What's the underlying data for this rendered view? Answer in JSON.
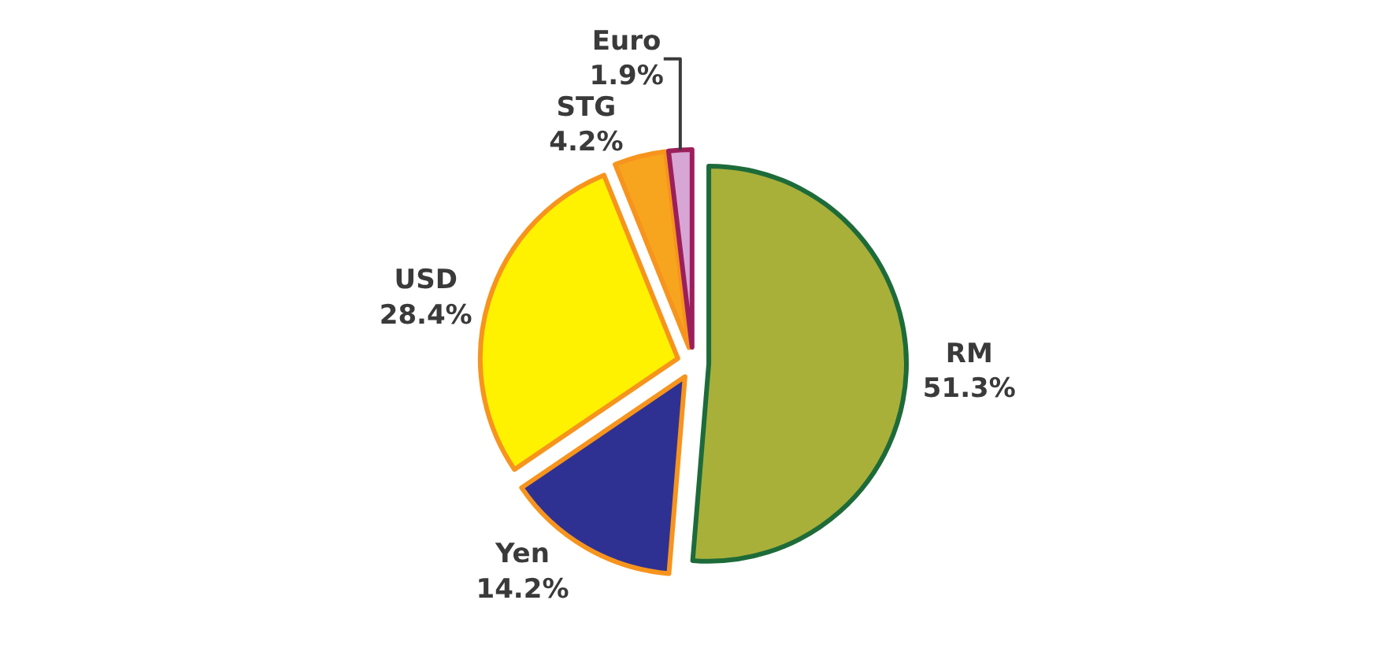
{
  "chart_data": {
    "type": "pie",
    "categories": [
      "RM",
      "Yen",
      "USD",
      "STG",
      "Euro"
    ],
    "values": [
      51.3,
      14.2,
      28.4,
      4.2,
      1.9
    ],
    "value_labels": [
      "51.3%",
      "14.2%",
      "28.4%",
      "4.2%",
      "1.9%"
    ],
    "colors": [
      "#a8b03a",
      "#2e3192",
      "#fff200",
      "#f7a51e",
      "#d8a6d4"
    ],
    "legend": false
  }
}
